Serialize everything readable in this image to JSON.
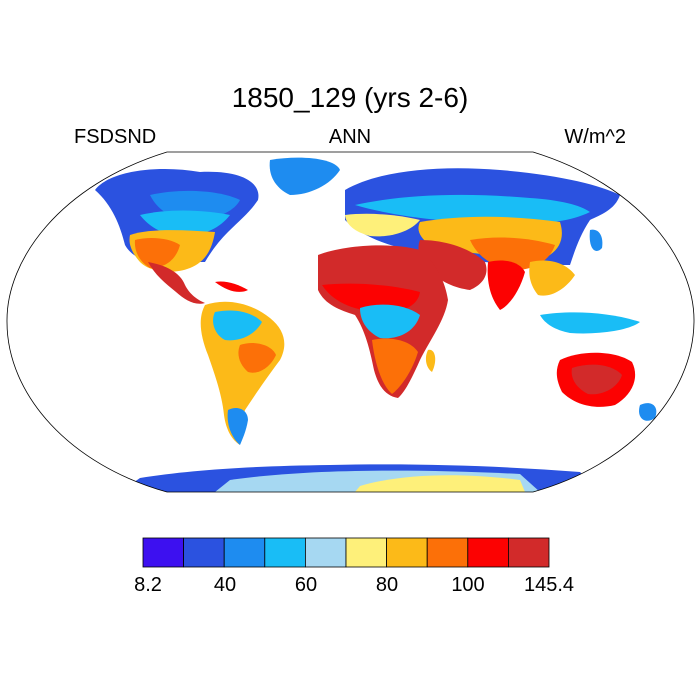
{
  "title": "1850_129 (yrs 2-6)",
  "subtitle_left": "FSDSND",
  "subtitle_center": "ANN",
  "subtitle_right": "W/m^2",
  "colorbar": {
    "colors": [
      "#3d10f0",
      "#2b52e0",
      "#1e8cf0",
      "#19bdf6",
      "#a6d8f2",
      "#fef07a",
      "#fcba18",
      "#fc7008",
      "#fc0202",
      "#d22a2a"
    ],
    "labels": [
      "8.2",
      "40",
      "60",
      "80",
      "100",
      "145.4"
    ]
  },
  "chart_data": {
    "type": "heatmap",
    "variable": "FSDSND",
    "period": "ANN",
    "units": "W/m^2",
    "projection": "robinson",
    "range": [
      8.2,
      145.4
    ],
    "colorbar_ticks": [
      "8.2",
      "40",
      "60",
      "80",
      "100",
      "145.4"
    ],
    "regions": [
      {
        "region": "Sahara / North Africa",
        "level": "high",
        "color": "#d22a2a"
      },
      {
        "region": "Arabian Peninsula",
        "level": "high",
        "color": "#d22a2a"
      },
      {
        "region": "Australia interior",
        "level": "high",
        "color": "#fc0202"
      },
      {
        "region": "Southern Africa",
        "level": "high",
        "color": "#fc7008"
      },
      {
        "region": "South America (south)",
        "level": "medium-high",
        "color": "#fcba18"
      },
      {
        "region": "Central Asia / China",
        "level": "medium-high",
        "color": "#fc7008"
      },
      {
        "region": "Western United States",
        "level": "medium-high",
        "color": "#fc7008"
      },
      {
        "region": "Antarctica interior",
        "level": "medium",
        "color": "#fef07a"
      },
      {
        "region": "Equatorial Africa / Amazon",
        "level": "low-medium",
        "color": "#19bdf6"
      },
      {
        "region": "Canada / Siberia / Greenland",
        "level": "low",
        "color": "#2b52e0"
      }
    ]
  }
}
